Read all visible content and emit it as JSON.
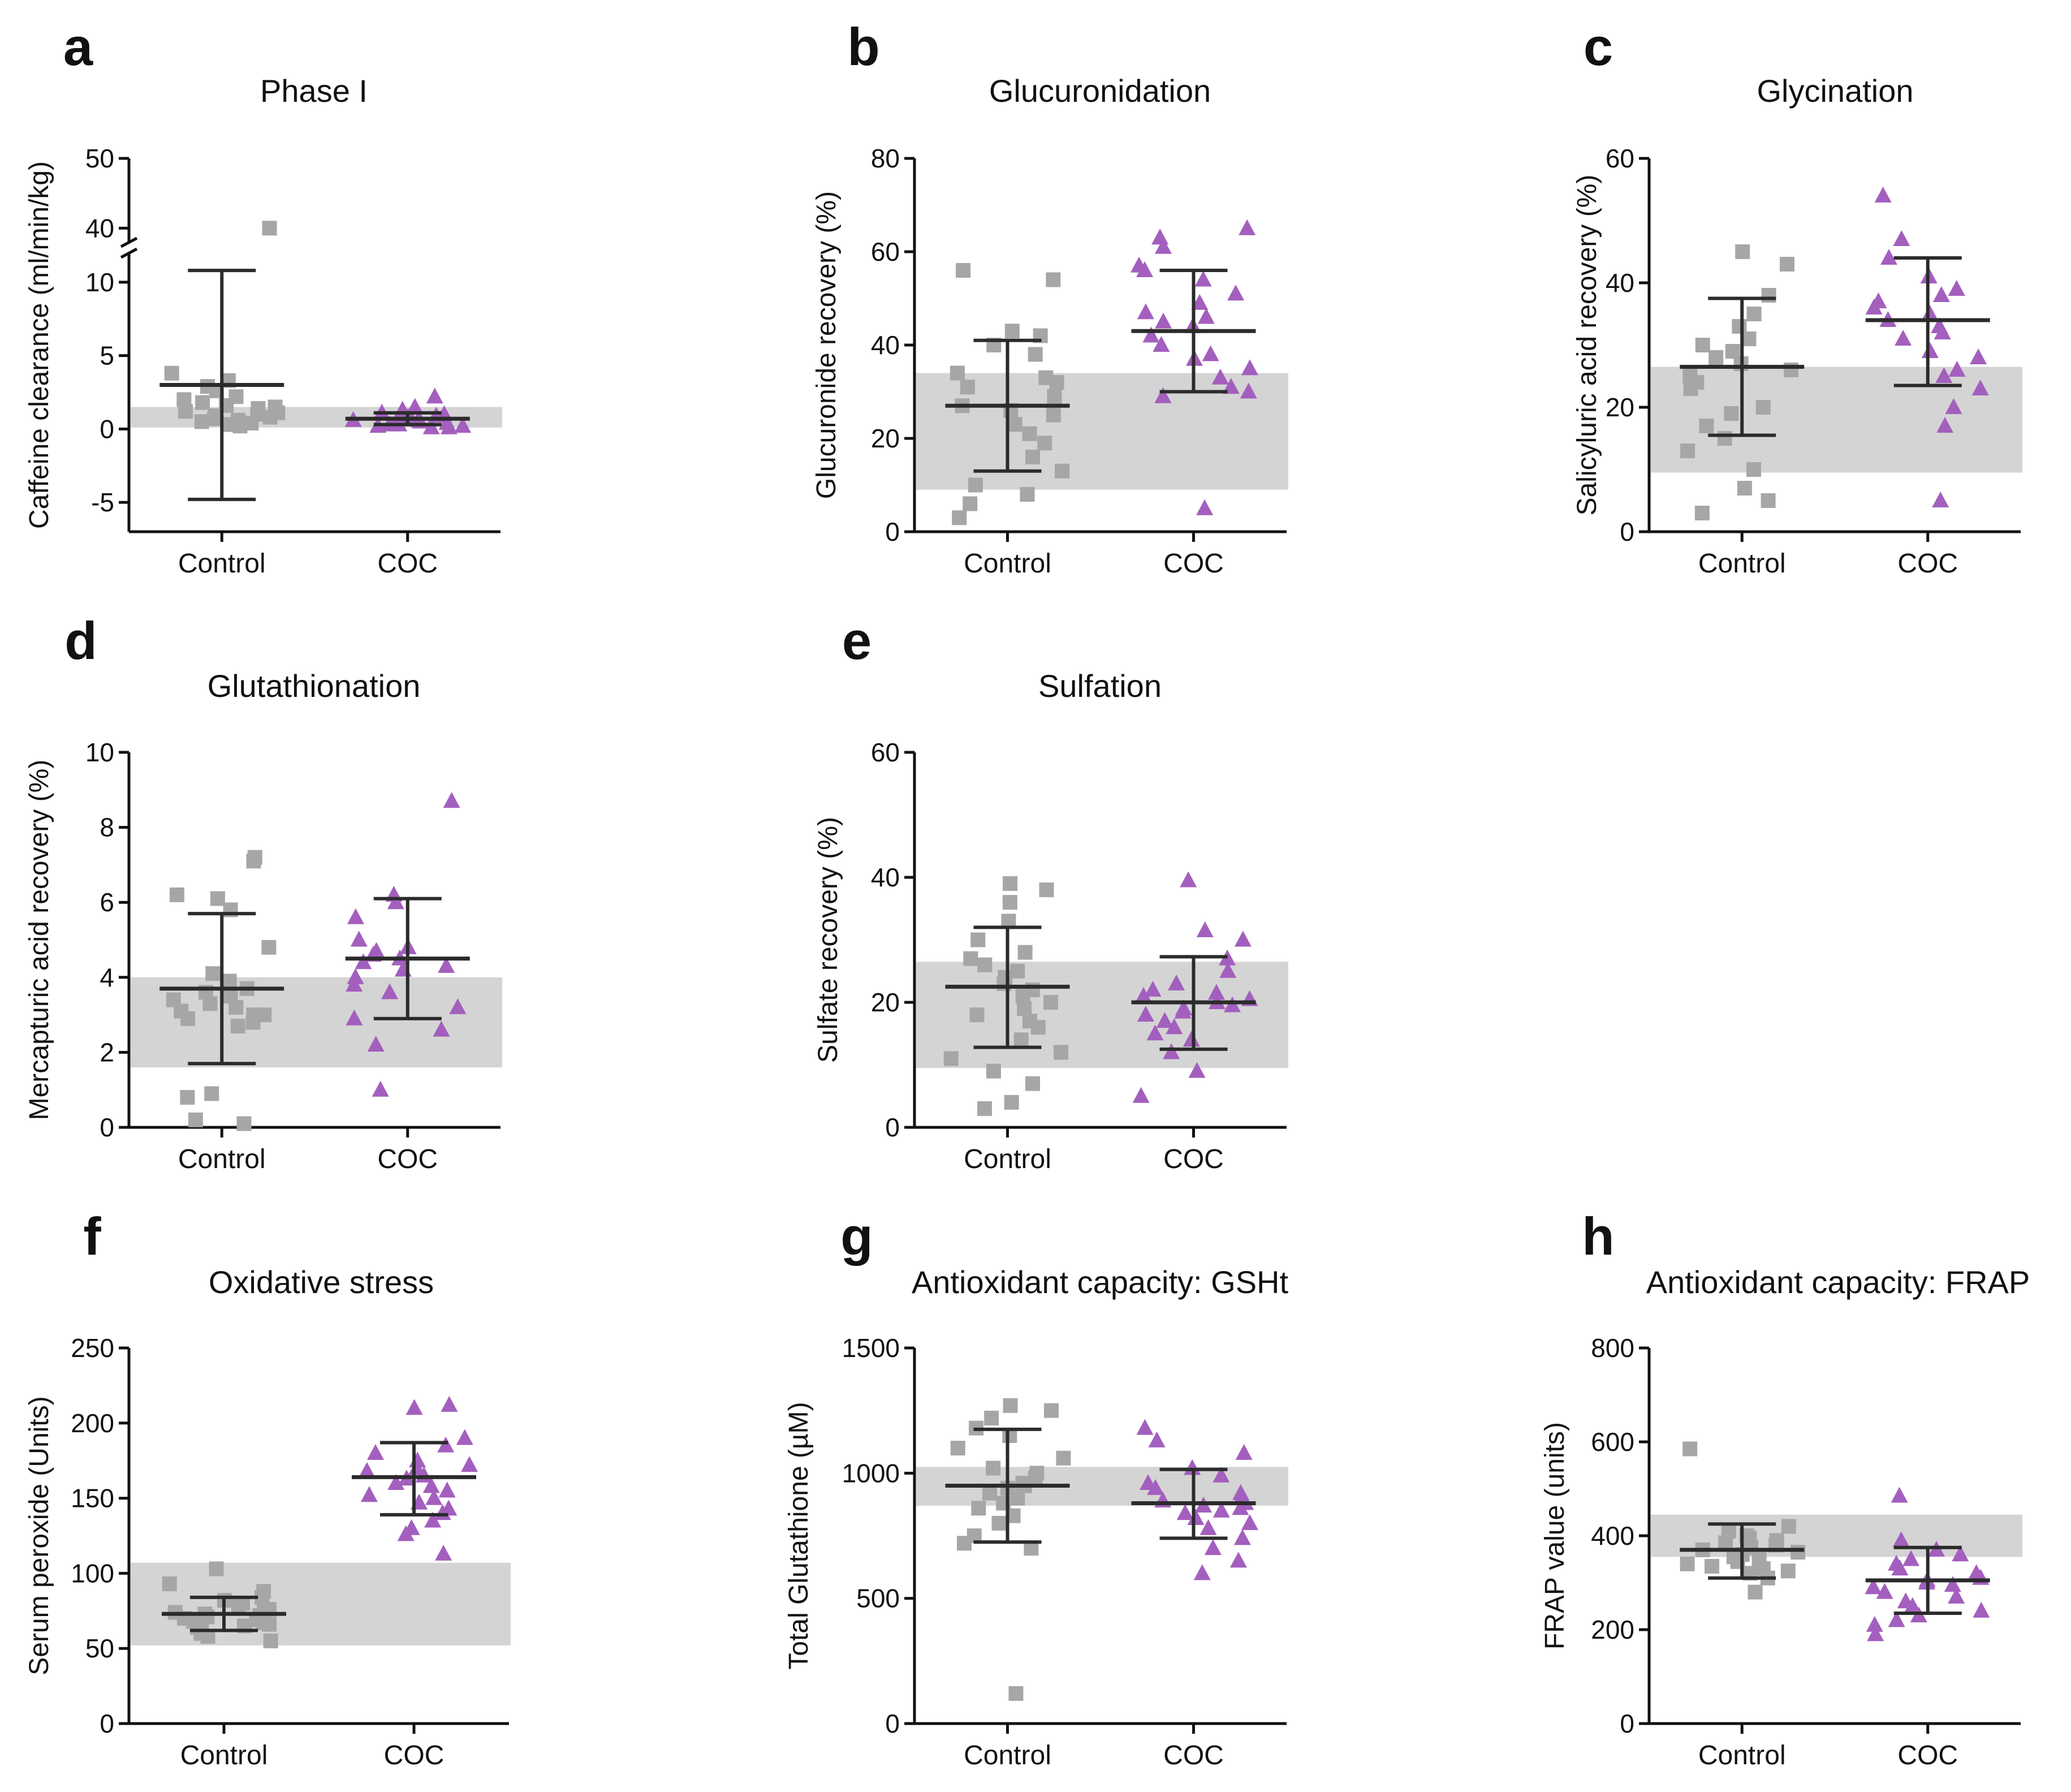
{
  "colors": {
    "control": "#a6a6a6",
    "coc": "#a35fbe",
    "band": "#d4d4d4",
    "axis": "#111111"
  },
  "chart_data": [
    {
      "letter": "a",
      "type": "scatter",
      "title": "Phase I",
      "ylabel": "Caffeine clearance (ml/min/kg)",
      "categories": [
        "Control",
        "COC"
      ],
      "ylim": [
        -7,
        50
      ],
      "yticks": [
        -5,
        0,
        5,
        10,
        40,
        50
      ],
      "ytick_labels": [
        "-5",
        "0",
        "5",
        "10",
        "40",
        "50"
      ],
      "axis_break": [
        12,
        38
      ],
      "reference_band": [
        0.1,
        1.5
      ],
      "series": [
        {
          "name": "Control",
          "marker": "square",
          "mean": 3.0,
          "sd_low": -4.8,
          "sd_high": 10.8,
          "values": [
            40,
            3.8,
            3.3,
            2.9,
            2.6,
            2.2,
            2.0,
            1.8,
            1.6,
            1.5,
            1.4,
            1.2,
            1.1,
            1.0,
            0.9,
            0.8,
            0.7,
            0.6,
            0.5,
            0.4,
            0.3,
            0.2
          ]
        },
        {
          "name": "COC",
          "marker": "triangle",
          "mean": 0.7,
          "sd_low": 0.3,
          "sd_high": 1.1,
          "values": [
            2.2,
            1.5,
            1.3,
            1.1,
            1.0,
            0.9,
            0.8,
            0.8,
            0.7,
            0.6,
            0.6,
            0.5,
            0.5,
            0.4,
            0.3,
            0.3,
            0.2,
            0.2,
            0.1,
            0.1
          ]
        }
      ]
    },
    {
      "letter": "b",
      "type": "scatter",
      "title": "Glucuronidation",
      "ylabel": "Glucuronide recovery (%)",
      "categories": [
        "Control",
        "COC"
      ],
      "ylim": [
        0,
        80
      ],
      "yticks": [
        0,
        20,
        40,
        60,
        80
      ],
      "ytick_labels": [
        "0",
        "20",
        "40",
        "60",
        "80"
      ],
      "reference_band": [
        9,
        34
      ],
      "series": [
        {
          "name": "Control",
          "marker": "square",
          "mean": 27,
          "sd_low": 13,
          "sd_high": 41,
          "values": [
            56,
            54,
            43,
            42,
            40,
            38,
            34,
            33,
            32,
            31,
            29,
            27,
            26,
            25,
            23,
            21,
            19,
            16,
            13,
            10,
            8,
            6,
            3
          ]
        },
        {
          "name": "COC",
          "marker": "triangle",
          "mean": 43,
          "sd_low": 30,
          "sd_high": 56,
          "values": [
            65,
            63,
            61,
            57,
            56,
            54,
            51,
            49,
            47,
            46,
            45,
            44,
            42,
            40,
            38,
            37,
            35,
            33,
            31,
            30,
            29,
            5
          ]
        }
      ]
    },
    {
      "letter": "c",
      "type": "scatter",
      "title": "Glycination",
      "ylabel": "Salicyluric acid recovery (%)",
      "categories": [
        "Control",
        "COC"
      ],
      "ylim": [
        0,
        60
      ],
      "yticks": [
        0,
        20,
        40,
        60
      ],
      "ytick_labels": [
        "0",
        "20",
        "40",
        "60"
      ],
      "reference_band": [
        9.5,
        26.5
      ],
      "series": [
        {
          "name": "Control",
          "marker": "square",
          "mean": 26.5,
          "sd_low": 15.5,
          "sd_high": 37.5,
          "values": [
            45,
            43,
            38,
            35,
            33,
            31,
            30,
            29,
            28,
            27,
            26,
            25,
            24,
            23,
            20,
            19,
            17,
            15,
            13,
            10,
            7,
            5,
            3
          ]
        },
        {
          "name": "COC",
          "marker": "triangle",
          "mean": 34,
          "sd_low": 23.5,
          "sd_high": 44,
          "values": [
            54,
            47,
            44,
            41,
            39,
            38,
            37,
            36,
            35,
            34,
            33,
            32,
            31,
            29,
            28,
            26,
            25,
            23,
            20,
            17,
            5
          ]
        }
      ]
    },
    {
      "letter": "d",
      "type": "scatter",
      "title": "Glutathionation",
      "ylabel": "Mercapturic acid recovery (%)",
      "categories": [
        "Control",
        "COC"
      ],
      "ylim": [
        0,
        10
      ],
      "yticks": [
        0,
        2,
        4,
        6,
        8,
        10
      ],
      "ytick_labels": [
        "0",
        "2",
        "4",
        "6",
        "8",
        "10"
      ],
      "reference_band": [
        1.6,
        4.0
      ],
      "series": [
        {
          "name": "Control",
          "marker": "square",
          "mean": 3.7,
          "sd_low": 1.7,
          "sd_high": 5.7,
          "values": [
            7.2,
            7.1,
            6.2,
            6.1,
            5.8,
            4.8,
            4.1,
            3.9,
            3.7,
            3.6,
            3.5,
            3.4,
            3.3,
            3.2,
            3.1,
            3.0,
            3.0,
            2.9,
            2.8,
            2.7,
            0.9,
            0.8,
            0.2,
            0.1
          ]
        },
        {
          "name": "COC",
          "marker": "triangle",
          "mean": 4.5,
          "sd_low": 2.9,
          "sd_high": 6.1,
          "values": [
            8.7,
            6.2,
            6.0,
            5.6,
            5.0,
            4.8,
            4.7,
            4.6,
            4.5,
            4.4,
            4.3,
            4.2,
            4.0,
            3.8,
            3.6,
            3.2,
            2.9,
            2.6,
            2.2,
            1.0
          ]
        }
      ]
    },
    {
      "letter": "e",
      "type": "scatter",
      "title": "Sulfation",
      "ylabel": "Sulfate recovery (%)",
      "categories": [
        "Control",
        "COC"
      ],
      "ylim": [
        0,
        60
      ],
      "yticks": [
        0,
        20,
        40,
        60
      ],
      "ytick_labels": [
        "0",
        "20",
        "40",
        "60"
      ],
      "reference_band": [
        9.5,
        26.5
      ],
      "series": [
        {
          "name": "Control",
          "marker": "square",
          "mean": 22.5,
          "sd_low": 12.8,
          "sd_high": 32,
          "values": [
            39,
            38,
            36,
            33,
            30,
            28,
            27,
            26,
            25,
            24,
            23,
            22,
            21,
            20,
            19,
            18,
            17,
            16,
            14,
            12,
            11,
            9,
            7,
            4,
            3
          ]
        },
        {
          "name": "COC",
          "marker": "triangle",
          "mean": 20,
          "sd_low": 12.5,
          "sd_high": 27.3,
          "values": [
            39.5,
            31.5,
            30,
            27,
            25,
            23,
            22,
            21.5,
            21,
            20.5,
            20,
            19.5,
            19,
            18.5,
            18,
            17,
            16,
            15,
            14,
            12,
            9,
            5
          ]
        }
      ]
    },
    {
      "letter": "f",
      "type": "scatter",
      "title": "Oxidative stress",
      "ylabel": "Serum peroxide (Units)",
      "categories": [
        "Control",
        "COC"
      ],
      "ylim": [
        0,
        250
      ],
      "yticks": [
        0,
        50,
        100,
        150,
        200,
        250
      ],
      "ytick_labels": [
        "0",
        "50",
        "100",
        "150",
        "200",
        "250"
      ],
      "reference_band": [
        52,
        107
      ],
      "series": [
        {
          "name": "Control",
          "marker": "square",
          "mean": 73,
          "sd_low": 62,
          "sd_high": 84,
          "values": [
            103,
            93,
            88,
            84,
            82,
            80,
            78,
            76,
            75,
            74,
            73,
            72,
            71,
            70,
            69,
            68,
            67,
            66,
            65,
            64,
            62,
            60,
            58,
            55
          ]
        },
        {
          "name": "COC",
          "marker": "triangle",
          "mean": 164,
          "sd_low": 139,
          "sd_high": 187,
          "values": [
            212,
            210,
            190,
            185,
            180,
            175,
            172,
            170,
            168,
            165,
            163,
            160,
            158,
            155,
            152,
            150,
            147,
            143,
            140,
            135,
            130,
            126,
            113
          ]
        }
      ]
    },
    {
      "letter": "g",
      "type": "scatter",
      "title": "Antioxidant capacity: GSHt",
      "ylabel": "Total Glutathione (µM)",
      "categories": [
        "Control",
        "COC"
      ],
      "ylim": [
        0,
        1500
      ],
      "yticks": [
        0,
        500,
        1000,
        1500
      ],
      "ytick_labels": [
        "0",
        "500",
        "1000",
        "1500"
      ],
      "reference_band": [
        870,
        1025
      ],
      "series": [
        {
          "name": "Control",
          "marker": "square",
          "mean": 950,
          "sd_low": 725,
          "sd_high": 1175,
          "values": [
            1270,
            1250,
            1220,
            1180,
            1150,
            1100,
            1060,
            1020,
            1000,
            980,
            960,
            950,
            940,
            920,
            900,
            880,
            860,
            830,
            800,
            750,
            720,
            700,
            120
          ]
        },
        {
          "name": "COC",
          "marker": "triangle",
          "mean": 880,
          "sd_low": 740,
          "sd_high": 1015,
          "values": [
            1180,
            1130,
            1080,
            1020,
            990,
            960,
            940,
            920,
            900,
            890,
            880,
            870,
            860,
            850,
            840,
            820,
            800,
            780,
            740,
            700,
            650,
            600
          ]
        }
      ]
    },
    {
      "letter": "h",
      "type": "scatter",
      "title": "Antioxidant capacity: FRAP",
      "ylabel": "FRAP value (units)",
      "categories": [
        "Control",
        "COC"
      ],
      "ylim": [
        0,
        800
      ],
      "yticks": [
        0,
        200,
        400,
        600,
        800
      ],
      "ytick_labels": [
        "0",
        "200",
        "400",
        "600",
        "800"
      ],
      "reference_band": [
        355,
        445
      ],
      "series": [
        {
          "name": "Control",
          "marker": "square",
          "mean": 370,
          "sd_low": 310,
          "sd_high": 425,
          "values": [
            585,
            420,
            410,
            400,
            395,
            390,
            385,
            380,
            375,
            370,
            365,
            360,
            355,
            350,
            345,
            340,
            335,
            330,
            325,
            320,
            310,
            280
          ]
        },
        {
          "name": "COC",
          "marker": "triangle",
          "mean": 305,
          "sd_low": 235,
          "sd_high": 375,
          "values": [
            485,
            390,
            370,
            360,
            350,
            340,
            330,
            320,
            310,
            305,
            300,
            295,
            290,
            280,
            270,
            260,
            250,
            240,
            230,
            220,
            210,
            190
          ]
        }
      ]
    }
  ]
}
